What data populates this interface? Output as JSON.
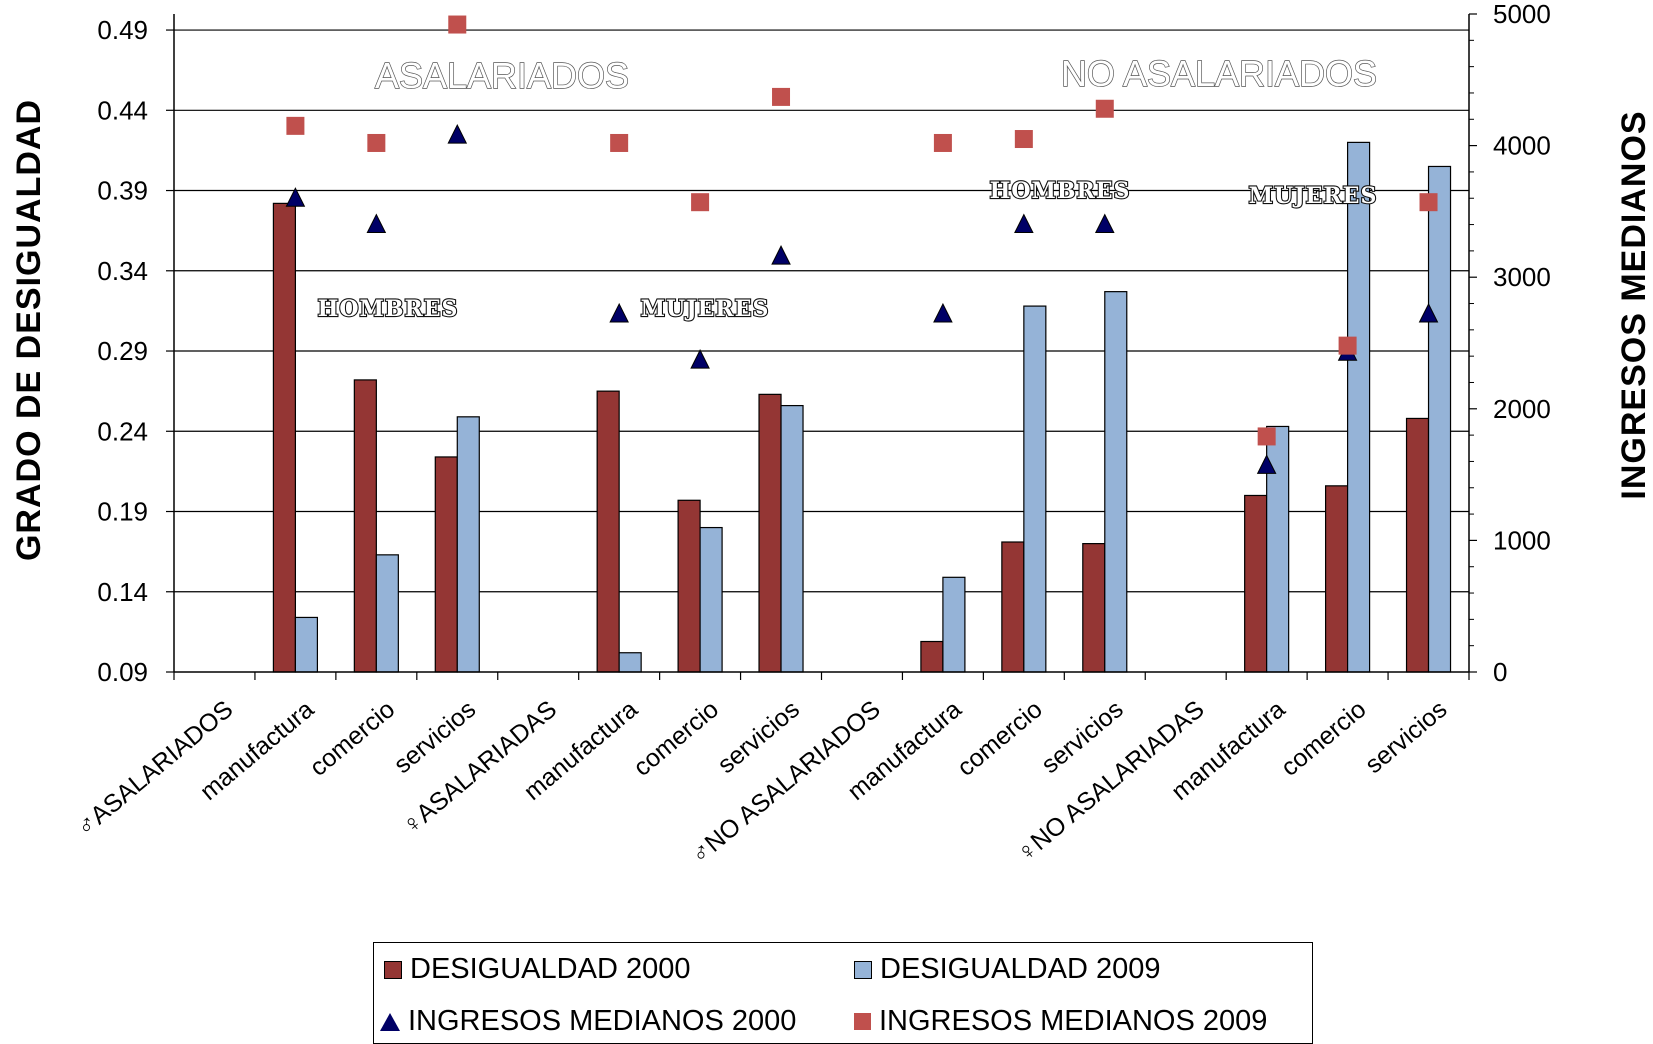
{
  "chart_data": {
    "type": "bar",
    "categories": [
      "♂ASALARIADOS",
      "manufactura",
      "comercio",
      "servicios",
      "♀ASALARIADAS",
      "manufactura",
      "comercio",
      "servicios",
      "♂NO ASALARIADOS",
      "manufactura",
      "comercio",
      "servicios",
      "♀NO ASALARIADAS",
      "manufactura",
      "comercio",
      "servicios"
    ],
    "series": [
      {
        "name": "DESIGUALDAD 2000",
        "kind": "bar",
        "axis": "left",
        "color": "#943634",
        "values": [
          null,
          0.382,
          0.272,
          0.224,
          null,
          0.265,
          0.197,
          0.263,
          null,
          0.109,
          0.171,
          0.17,
          null,
          0.2,
          0.206,
          0.248
        ]
      },
      {
        "name": "DESIGUALDAD 2009",
        "kind": "bar",
        "axis": "left",
        "color": "#95b3d7",
        "values": [
          null,
          0.124,
          0.163,
          0.249,
          null,
          0.102,
          0.18,
          0.256,
          null,
          0.149,
          0.318,
          0.327,
          null,
          0.243,
          0.42,
          0.405
        ]
      },
      {
        "name": "INGRESOS MEDIANOS 2000",
        "kind": "triangle",
        "axis": "right",
        "color": "#000066",
        "values": [
          null,
          3600,
          3400,
          4080,
          null,
          2720,
          2370,
          3160,
          null,
          2720,
          3400,
          3400,
          null,
          1570,
          2430,
          2720
        ]
      },
      {
        "name": "INGRESOS MEDIANOS 2009",
        "kind": "square",
        "axis": "right",
        "color": "#c0504d",
        "values": [
          null,
          4150,
          4020,
          4920,
          null,
          4020,
          3570,
          4370,
          null,
          4020,
          4050,
          4280,
          null,
          1790,
          2480,
          3570
        ]
      }
    ],
    "ylabel": "GRADO DE DESIGUALDAD",
    "y2label": "INGRESOS MEDIANOS",
    "ylim": [
      0.09,
      0.5
    ],
    "yticks": [
      "0.09",
      "0.14",
      "0.19",
      "0.24",
      "0.29",
      "0.34",
      "0.39",
      "0.44",
      "0.49"
    ],
    "y2lim": [
      0,
      5000
    ],
    "y2ticks": [
      "0",
      "1000",
      "2000",
      "3000",
      "4000",
      "5000"
    ],
    "grid": true,
    "legend_position": "bottom",
    "annotations": {
      "asalariados": "ASALARIADOS",
      "no_asalariados": "NO ASALARIADOS",
      "hombres_1": "HOMBRES",
      "mujeres_1": "MUJERES",
      "hombres_2": "HOMBRES",
      "mujeres_2": "MUJERES"
    }
  }
}
